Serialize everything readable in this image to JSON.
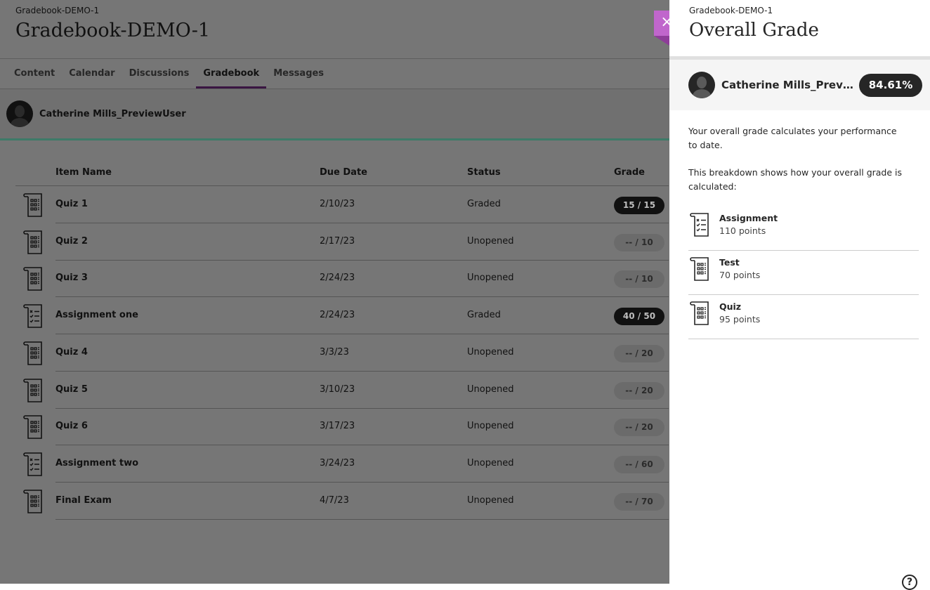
{
  "course": {
    "breadcrumb": "Gradebook-DEMO-1",
    "title": "Gradebook-DEMO-1"
  },
  "tabs": [
    {
      "label": "Content"
    },
    {
      "label": "Calendar"
    },
    {
      "label": "Discussions"
    },
    {
      "label": "Gradebook",
      "active": true
    },
    {
      "label": "Messages"
    }
  ],
  "user": {
    "name": "Catherine Mills_PreviewUser"
  },
  "table": {
    "headers": [
      "Item Name",
      "Due Date",
      "Status",
      "Grade"
    ],
    "rows": [
      {
        "icon": "quiz-icon",
        "name": "Quiz 1",
        "due": "2/10/23",
        "status": "Graded",
        "grade": "15 / 15",
        "graded": true
      },
      {
        "icon": "quiz-icon",
        "name": "Quiz 2",
        "due": "2/17/23",
        "status": "Unopened",
        "grade": "-- / 10",
        "graded": false
      },
      {
        "icon": "quiz-icon",
        "name": "Quiz 3",
        "due": "2/24/23",
        "status": "Unopened",
        "grade": "-- / 10",
        "graded": false
      },
      {
        "icon": "assignment-icon",
        "name": "Assignment one",
        "due": "2/24/23",
        "status": "Graded",
        "grade": "40 / 50",
        "graded": true
      },
      {
        "icon": "quiz-icon",
        "name": "Quiz 4",
        "due": "3/3/23",
        "status": "Unopened",
        "grade": "-- / 20",
        "graded": false
      },
      {
        "icon": "quiz-icon",
        "name": "Quiz 5",
        "due": "3/10/23",
        "status": "Unopened",
        "grade": "-- / 20",
        "graded": false
      },
      {
        "icon": "quiz-icon",
        "name": "Quiz 6",
        "due": "3/17/23",
        "status": "Unopened",
        "grade": "-- / 20",
        "graded": false
      },
      {
        "icon": "assignment-icon",
        "name": "Assignment two",
        "due": "3/24/23",
        "status": "Unopened",
        "grade": "-- / 60",
        "graded": false
      },
      {
        "icon": "quiz-icon",
        "name": "Final Exam",
        "due": "4/7/23",
        "status": "Unopened",
        "grade": "-- / 70",
        "graded": false
      }
    ]
  },
  "panel": {
    "breadcrumb": "Gradebook-DEMO-1",
    "title": "Overall Grade",
    "close_icon": "×",
    "user_name": "Catherine Mills_PreviewUser",
    "overall": "84.61%",
    "desc1": "Your overall grade calculates your performance to date.",
    "desc2": "This breakdown shows how your overall grade is calculated:",
    "categories": [
      {
        "icon": "assignment-icon",
        "name": "Assignment",
        "points": "110 points"
      },
      {
        "icon": "quiz-icon",
        "name": "Test",
        "points": "70 points"
      },
      {
        "icon": "quiz-icon",
        "name": "Quiz",
        "points": "95 points"
      }
    ],
    "help_icon": "?"
  },
  "colors": {
    "accent": "#7c2d8f",
    "close": "#c066cc",
    "progress": "#48a48a"
  }
}
